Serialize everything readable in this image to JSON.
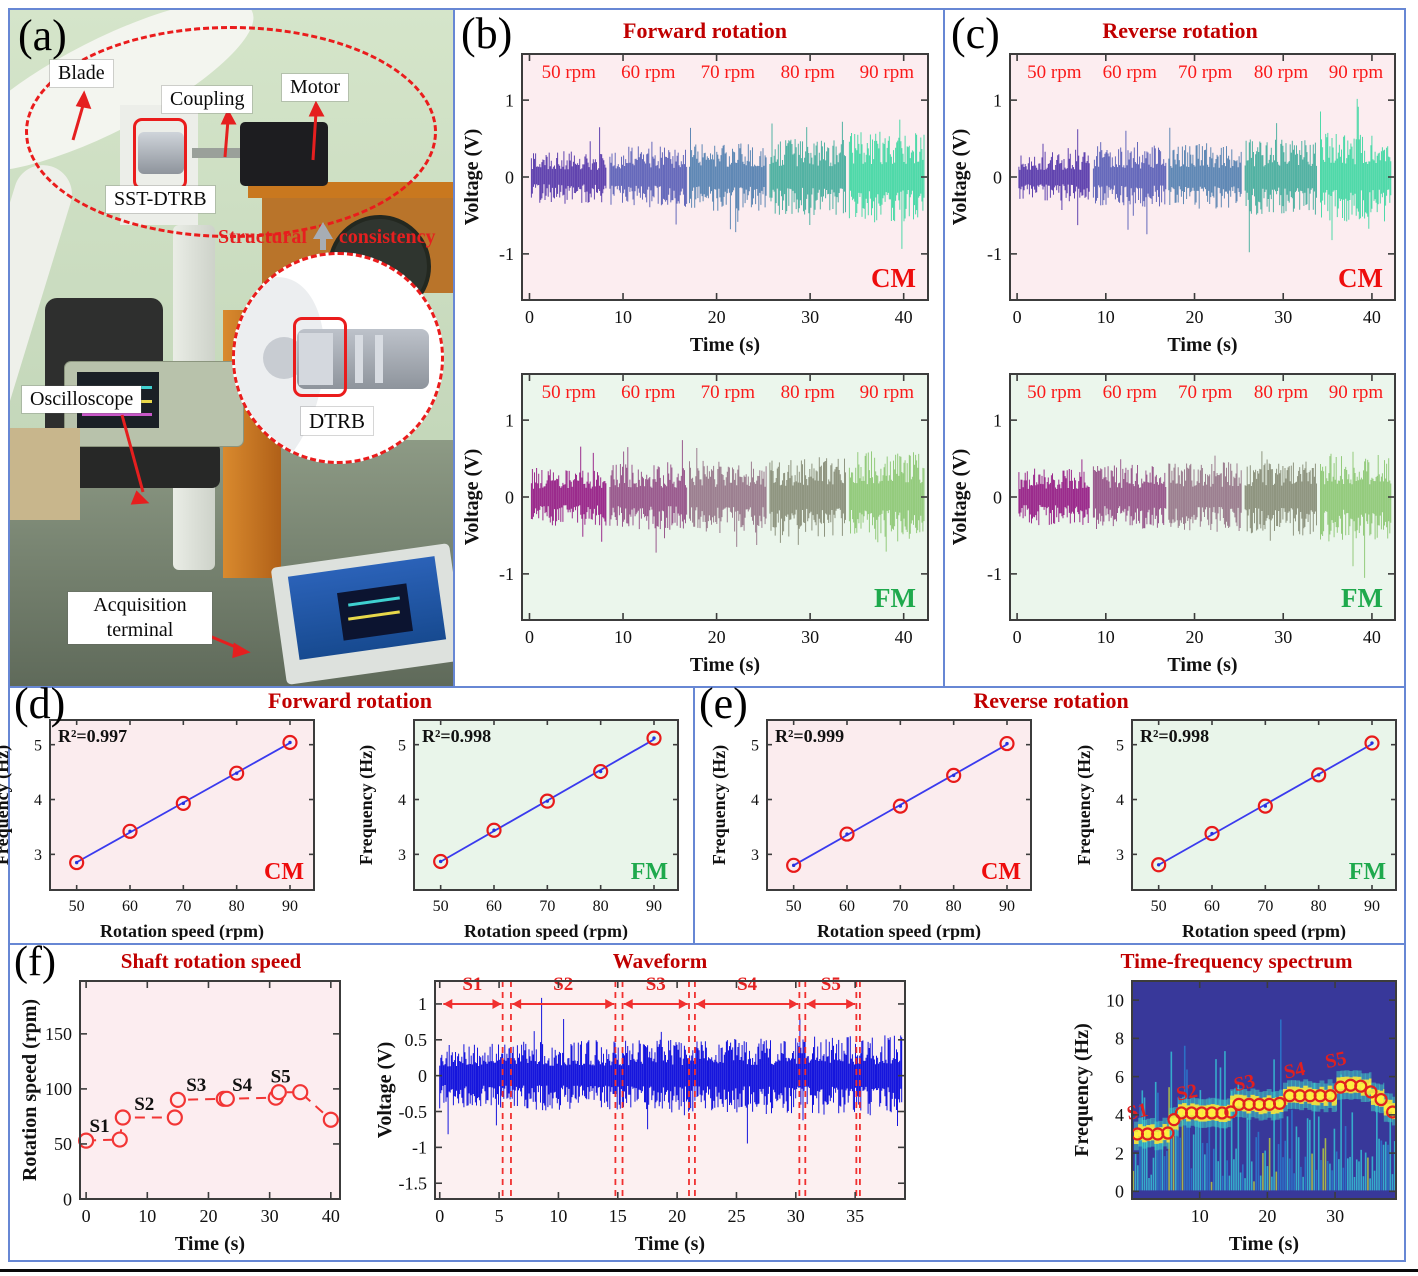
{
  "colors": {
    "panel_border": "#6787d4",
    "title_red": "#c00000",
    "rpm_red": "#fa1a1a",
    "cm_red": "#ee0d0d",
    "fm_green": "#1fa94d",
    "axis_text": "#111111",
    "wave_blue": "#1515dd",
    "fit_blue": "#3a3aee",
    "marker_red": "#e81a1a",
    "speed_red": "#f23535",
    "spectrum_bg": "#38389a",
    "spectrum_band": "#f2e23d",
    "spectrum_streak": "#35c8d8",
    "pink_bg": "#fcedf0",
    "green_bg": "#ebf6ec"
  },
  "panels": {
    "a": {
      "tag": "(a)",
      "labels": {
        "blade": "Blade",
        "coupling": "Coupling",
        "motor": "Motor",
        "sst_dtrb": "SST-DTRB",
        "structural_prefix": "Structural",
        "structural_suffix": "consistency",
        "oscilloscope": "Oscilloscope",
        "dtrb": "DTRB",
        "acquisition": "Acquisition terminal"
      }
    },
    "b": {
      "tag": "(b)",
      "title": "Forward rotation"
    },
    "c": {
      "tag": "(c)",
      "title": "Reverse rotation"
    },
    "d": {
      "tag": "(d)",
      "title": "Forward rotation"
    },
    "e": {
      "tag": "(e)",
      "title": "Reverse rotation"
    },
    "f": {
      "tag": "(f)"
    }
  },
  "chart_data": [
    {
      "id": "ch-b-cm",
      "type": "line",
      "kind": "noise-waveform",
      "panel": "(b)",
      "group_title": "Forward rotation",
      "corner_label": "CM",
      "corner_color": "#ee0d0d",
      "bg": "#fcedf0",
      "xlabel": "Time (s)",
      "ylabel": "Voltage (V)",
      "xlim": [
        -0.8,
        42.6
      ],
      "ylim": [
        -1.6,
        1.6
      ],
      "xticks": [
        0,
        10,
        20,
        30,
        40
      ],
      "yticks": [
        -1,
        0,
        1
      ],
      "segments": [
        {
          "label": "50 rpm",
          "t0": 0.2,
          "t1": 8.2,
          "amp": 0.34,
          "color": "#6144af"
        },
        {
          "label": "60 rpm",
          "t0": 8.6,
          "t1": 16.8,
          "amp": 0.4,
          "color": "#6569bb"
        },
        {
          "label": "70 rpm",
          "t0": 17.1,
          "t1": 25.3,
          "amp": 0.44,
          "color": "#5f88b5"
        },
        {
          "label": "80 rpm",
          "t0": 25.7,
          "t1": 33.8,
          "amp": 0.5,
          "color": "#52b2a3"
        },
        {
          "label": "90 rpm",
          "t0": 34.2,
          "t1": 42.2,
          "amp": 0.6,
          "color": "#4fd9a9"
        }
      ]
    },
    {
      "id": "ch-b-fm",
      "type": "line",
      "kind": "noise-waveform",
      "panel": "(b)",
      "group_title": "Forward rotation",
      "corner_label": "FM",
      "corner_color": "#1fa94d",
      "bg": "#ebf6ec",
      "xlabel": "Time (s)",
      "ylabel": "Voltage (V)",
      "xlim": [
        -0.8,
        42.6
      ],
      "ylim": [
        -1.6,
        1.6
      ],
      "xticks": [
        0,
        10,
        20,
        30,
        40
      ],
      "yticks": [
        -1,
        0,
        1
      ],
      "segments": [
        {
          "label": "50 rpm",
          "t0": 0.2,
          "t1": 8.2,
          "amp": 0.38,
          "color": "#9b2b8c"
        },
        {
          "label": "60 rpm",
          "t0": 8.6,
          "t1": 16.8,
          "amp": 0.43,
          "color": "#9a5b8e"
        },
        {
          "label": "70 rpm",
          "t0": 17.1,
          "t1": 25.3,
          "amp": 0.47,
          "color": "#9c7f90"
        },
        {
          "label": "80 rpm",
          "t0": 25.7,
          "t1": 33.8,
          "amp": 0.52,
          "color": "#8f9580"
        },
        {
          "label": "90 rpm",
          "t0": 34.2,
          "t1": 42.2,
          "amp": 0.6,
          "color": "#94cb7d"
        }
      ]
    },
    {
      "id": "ch-c-cm",
      "type": "line",
      "kind": "noise-waveform",
      "panel": "(c)",
      "group_title": "Reverse rotation",
      "corner_label": "CM",
      "corner_color": "#ee0d0d",
      "bg": "#fcedf0",
      "xlabel": "Time (s)",
      "ylabel": "Voltage (V)",
      "xlim": [
        -0.8,
        42.6
      ],
      "ylim": [
        -1.6,
        1.6
      ],
      "xticks": [
        0,
        10,
        20,
        30,
        40
      ],
      "yticks": [
        -1,
        0,
        1
      ],
      "segments": [
        {
          "label": "50 rpm",
          "t0": 0.2,
          "t1": 8.2,
          "amp": 0.33,
          "color": "#6144af"
        },
        {
          "label": "60 rpm",
          "t0": 8.6,
          "t1": 16.8,
          "amp": 0.39,
          "color": "#6569bb"
        },
        {
          "label": "70 rpm",
          "t0": 17.1,
          "t1": 25.3,
          "amp": 0.43,
          "color": "#5f88b5"
        },
        {
          "label": "80 rpm",
          "t0": 25.7,
          "t1": 33.8,
          "amp": 0.49,
          "color": "#52b2a3"
        },
        {
          "label": "90 rpm",
          "t0": 34.2,
          "t1": 42.2,
          "amp": 0.58,
          "color": "#4fd9a9"
        }
      ]
    },
    {
      "id": "ch-c-fm",
      "type": "line",
      "kind": "noise-waveform",
      "panel": "(c)",
      "group_title": "Reverse rotation",
      "corner_label": "FM",
      "corner_color": "#1fa94d",
      "bg": "#ebf6ec",
      "xlabel": "Time (s)",
      "ylabel": "Voltage (V)",
      "xlim": [
        -0.8,
        42.6
      ],
      "ylim": [
        -1.6,
        1.6
      ],
      "xticks": [
        0,
        10,
        20,
        30,
        40
      ],
      "yticks": [
        -1,
        0,
        1
      ],
      "segments": [
        {
          "label": "50 rpm",
          "t0": 0.2,
          "t1": 8.2,
          "amp": 0.37,
          "color": "#9b2b8c"
        },
        {
          "label": "60 rpm",
          "t0": 8.6,
          "t1": 16.8,
          "amp": 0.42,
          "color": "#9a5b8e"
        },
        {
          "label": "70 rpm",
          "t0": 17.1,
          "t1": 25.3,
          "amp": 0.46,
          "color": "#9c7f90"
        },
        {
          "label": "80 rpm",
          "t0": 25.7,
          "t1": 33.8,
          "amp": 0.51,
          "color": "#8f9580"
        },
        {
          "label": "90 rpm",
          "t0": 34.2,
          "t1": 42.2,
          "amp": 0.59,
          "color": "#94cb7d"
        }
      ]
    },
    {
      "id": "ch-d-cm",
      "type": "scatter",
      "kind": "scatter-fit",
      "panel": "(d)",
      "group_title": "Forward rotation",
      "r2": "R²=0.997",
      "corner_label": "CM",
      "corner_color": "#ee0d0d",
      "bg": "#fbecee",
      "xlabel": "Rotation speed (rpm)",
      "ylabel": "Frequency (Hz)",
      "x": [
        50,
        60,
        70,
        80,
        90
      ],
      "y": [
        2.85,
        3.42,
        3.93,
        4.48,
        5.04
      ],
      "xlim": [
        45,
        94.5
      ],
      "ylim": [
        2.35,
        5.45
      ],
      "xticks": [
        50,
        60,
        70,
        80,
        90
      ],
      "yticks": [
        3,
        4,
        5
      ]
    },
    {
      "id": "ch-d-fm",
      "type": "scatter",
      "kind": "scatter-fit",
      "panel": "(d)",
      "group_title": "Forward rotation",
      "r2": "R²=0.998",
      "corner_label": "FM",
      "corner_color": "#1fa94d",
      "bg": "#e9f5ea",
      "xlabel": "Rotation speed (rpm)",
      "ylabel": "Frequency (Hz)",
      "x": [
        50,
        60,
        70,
        80,
        90
      ],
      "y": [
        2.87,
        3.44,
        3.97,
        4.51,
        5.12
      ],
      "xlim": [
        45,
        94.5
      ],
      "ylim": [
        2.35,
        5.45
      ],
      "xticks": [
        50,
        60,
        70,
        80,
        90
      ],
      "yticks": [
        3,
        4,
        5
      ]
    },
    {
      "id": "ch-e-cm",
      "type": "scatter",
      "kind": "scatter-fit",
      "panel": "(e)",
      "group_title": "Reverse rotation",
      "r2": "R²=0.999",
      "corner_label": "CM",
      "corner_color": "#ee0d0d",
      "bg": "#fbecee",
      "xlabel": "Rotation speed (rpm)",
      "ylabel": "Frequency (Hz)",
      "x": [
        50,
        60,
        70,
        80,
        90
      ],
      "y": [
        2.8,
        3.37,
        3.88,
        4.44,
        5.02
      ],
      "xlim": [
        45,
        94.5
      ],
      "ylim": [
        2.35,
        5.45
      ],
      "xticks": [
        50,
        60,
        70,
        80,
        90
      ],
      "yticks": [
        3,
        4,
        5
      ]
    },
    {
      "id": "ch-e-fm",
      "type": "scatter",
      "kind": "scatter-fit",
      "panel": "(e)",
      "group_title": "Reverse rotation",
      "r2": "R²=0.998",
      "corner_label": "FM",
      "corner_color": "#1fa94d",
      "bg": "#e9f5ea",
      "xlabel": "Rotation speed (rpm)",
      "ylabel": "Frequency (Hz)",
      "x": [
        50,
        60,
        70,
        80,
        90
      ],
      "y": [
        2.81,
        3.38,
        3.88,
        4.45,
        5.03
      ],
      "xlim": [
        45,
        94.5
      ],
      "ylim": [
        2.35,
        5.45
      ],
      "xticks": [
        50,
        60,
        70,
        80,
        90
      ],
      "yticks": [
        3,
        4,
        5
      ]
    },
    {
      "id": "ch-f-speed",
      "type": "line",
      "kind": "speed-line",
      "panel": "(f)",
      "title": "Shaft rotation speed",
      "bg": "#fcedf0",
      "color": "#f23535",
      "xlabel": "Time (s)",
      "ylabel": "Rotation speed (rpm)",
      "xlim": [
        -1,
        41.5
      ],
      "ylim": [
        0,
        198
      ],
      "xticks": [
        0,
        10,
        20,
        30,
        40
      ],
      "yticks": [
        0,
        50,
        100,
        150
      ],
      "points": [
        [
          0,
          53
        ],
        [
          5.5,
          54
        ],
        [
          6,
          74
        ],
        [
          14.5,
          74
        ],
        [
          15,
          90
        ],
        [
          22.5,
          91
        ],
        [
          23,
          91
        ],
        [
          31,
          92
        ],
        [
          31.5,
          97
        ],
        [
          35,
          97
        ],
        [
          40,
          72
        ]
      ],
      "seg_labels": [
        {
          "text": "S1",
          "x": 2.2,
          "y": 61
        },
        {
          "text": "S2",
          "x": 9.5,
          "y": 81
        },
        {
          "text": "S3",
          "x": 18.0,
          "y": 98
        },
        {
          "text": "S4",
          "x": 25.5,
          "y": 98
        },
        {
          "text": "S5",
          "x": 31.8,
          "y": 106
        }
      ]
    },
    {
      "id": "ch-f-wave",
      "type": "line",
      "kind": "noise-single",
      "panel": "(f)",
      "title": "Waveform",
      "bg": "#fcf0f1",
      "color": "#1515dd",
      "xlabel": "Time (s)",
      "ylabel": "Voltage (V)",
      "xlim": [
        -0.4,
        39.2
      ],
      "ylim": [
        -1.72,
        1.32
      ],
      "xticks": [
        0,
        5,
        10,
        15,
        20,
        25,
        30,
        35
      ],
      "yticks": [
        1,
        0.5,
        0,
        -0.5,
        -1,
        -1.5
      ],
      "amp": 0.46,
      "grow": 0.006,
      "spike": 1.9,
      "boundaries": [
        [
          5.3,
          6.0
        ],
        [
          14.8,
          15.4
        ],
        [
          21.0,
          21.5
        ],
        [
          30.3,
          30.8
        ],
        [
          35.1,
          35.4
        ]
      ],
      "span_y": 1.0,
      "label_y": 1.17,
      "spans": [
        {
          "text": "S1",
          "t0": 0.3,
          "t1": 5.2
        },
        {
          "text": "S2",
          "t0": 6.1,
          "t1": 14.7
        },
        {
          "text": "S3",
          "t0": 15.5,
          "t1": 20.9
        },
        {
          "text": "S4",
          "t0": 21.6,
          "t1": 30.2
        },
        {
          "text": "S5",
          "t0": 30.9,
          "t1": 35.0
        }
      ]
    },
    {
      "id": "ch-f-spec",
      "type": "heatmap",
      "kind": "spectrum",
      "panel": "(f)",
      "title": "Time-frequency spectrum",
      "bg": "#38389a",
      "band_color": "#f2e23d",
      "streak_color": "#35c8d8",
      "marker_color": "#e02020",
      "xlabel": "Time (s)",
      "ylabel": "Frequency (Hz)",
      "xlim": [
        0,
        39
      ],
      "ylim": [
        -0.4,
        11
      ],
      "xticks": [
        10,
        20,
        30
      ],
      "yticks": [
        0,
        2,
        4,
        6,
        8,
        10
      ],
      "band_steps": [
        {
          "t0": 0.3,
          "t1": 5.5,
          "f": 3.0
        },
        {
          "t0": 5.5,
          "t1": 6.8,
          "f": 3.7
        },
        {
          "t0": 6.8,
          "t1": 14.5,
          "f": 4.1
        },
        {
          "t0": 14.5,
          "t1": 22.3,
          "f": 4.55
        },
        {
          "t0": 22.3,
          "t1": 30.2,
          "f": 5.0
        },
        {
          "t0": 30.2,
          "t1": 35.3,
          "f": 5.5
        },
        {
          "t0": 35.3,
          "t1": 37.2,
          "f": 4.9
        },
        {
          "t0": 37.2,
          "t1": 39.0,
          "f": 4.3
        }
      ],
      "markers": [
        [
          0.8,
          3.0
        ],
        [
          2.3,
          3.0
        ],
        [
          3.8,
          3.0
        ],
        [
          5.3,
          3.05
        ],
        [
          6.2,
          3.75
        ],
        [
          7.3,
          4.1
        ],
        [
          8.8,
          4.1
        ],
        [
          10.3,
          4.1
        ],
        [
          11.8,
          4.1
        ],
        [
          13.3,
          4.1
        ],
        [
          14.6,
          4.15
        ],
        [
          15.8,
          4.55
        ],
        [
          17.3,
          4.55
        ],
        [
          18.8,
          4.55
        ],
        [
          20.3,
          4.55
        ],
        [
          21.8,
          4.6
        ],
        [
          23.3,
          5.0
        ],
        [
          24.8,
          5.0
        ],
        [
          26.3,
          5.0
        ],
        [
          27.8,
          5.0
        ],
        [
          29.3,
          5.0
        ],
        [
          30.8,
          5.45
        ],
        [
          32.3,
          5.55
        ],
        [
          33.8,
          5.5
        ],
        [
          35.3,
          5.2
        ],
        [
          36.8,
          4.8
        ],
        [
          38.5,
          4.15
        ]
      ],
      "seg_labels": [
        {
          "text": "S1",
          "x": 1.0,
          "y": 3.85
        },
        {
          "text": "S2",
          "x": 8.3,
          "y": 4.85
        },
        {
          "text": "S3",
          "x": 16.8,
          "y": 5.35
        },
        {
          "text": "S4",
          "x": 24.2,
          "y": 6.0
        },
        {
          "text": "S5",
          "x": 30.3,
          "y": 6.55
        }
      ]
    }
  ]
}
